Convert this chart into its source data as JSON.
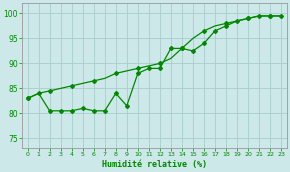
{
  "xlabel": "Humidité relative (%)",
  "background_color": "#cce8e8",
  "grid_color": "#aacccc",
  "line_color": "#008800",
  "xlim": [
    -0.5,
    23.5
  ],
  "ylim": [
    73,
    102
  ],
  "yticks": [
    75,
    80,
    85,
    90,
    95,
    100
  ],
  "xticks": [
    0,
    1,
    2,
    3,
    4,
    5,
    6,
    7,
    8,
    9,
    10,
    11,
    12,
    13,
    14,
    15,
    16,
    17,
    18,
    19,
    20,
    21,
    22,
    23
  ],
  "jagged_x": [
    0,
    1,
    2,
    3,
    4,
    5,
    6,
    7,
    8,
    9,
    10,
    11,
    12,
    13,
    14,
    15,
    16,
    17,
    18,
    19,
    20,
    21,
    22,
    23
  ],
  "jagged_y": [
    83,
    84,
    80.5,
    80.5,
    80.5,
    81,
    80.5,
    80.5,
    84,
    81.5,
    88,
    89,
    89,
    93,
    93,
    92.5,
    94,
    96.5,
    97.5,
    98.5,
    99,
    99.5,
    99.5,
    99.5
  ],
  "smooth_x": [
    0,
    1,
    2,
    3,
    4,
    5,
    6,
    7,
    8,
    9,
    10,
    11,
    12,
    13,
    14,
    15,
    16,
    17,
    18,
    19,
    20,
    21,
    22,
    23
  ],
  "smooth_y": [
    83,
    84,
    84.5,
    85,
    85.5,
    86,
    86.5,
    87,
    88,
    88.5,
    89,
    89.5,
    90,
    91,
    93,
    95,
    96.5,
    97.5,
    98,
    98.5,
    99,
    99.5,
    99.5,
    99.5
  ]
}
